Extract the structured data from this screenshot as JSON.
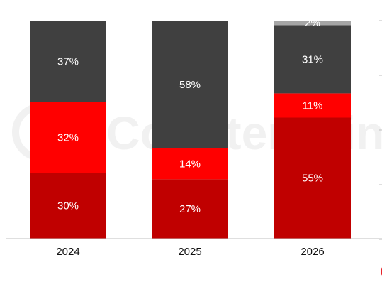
{
  "watermark": {
    "text": "Counterpoint"
  },
  "colors": {
    "dark_red": "#c00000",
    "red": "#ff0000",
    "dark_gray": "#404040",
    "light_gray": "#a6a6a6",
    "axis": "#bfbfbf",
    "accent_dot": "#e8242b"
  },
  "chart_data": {
    "type": "bar",
    "stacked": true,
    "percent_stacked": true,
    "categories": [
      "2024",
      "2025",
      "2026"
    ],
    "ylim": [
      0,
      100
    ],
    "legend": "none",
    "grid": false,
    "series": [
      {
        "color": "#c00000",
        "values": [
          30,
          27,
          55
        ],
        "labels": [
          "30%",
          "27%",
          "55%"
        ]
      },
      {
        "color": "#ff0000",
        "values": [
          32,
          14,
          11
        ],
        "labels": [
          "32%",
          "14%",
          "11%"
        ]
      },
      {
        "color": "#404040",
        "values": [
          37,
          58,
          31
        ],
        "labels": [
          "37%",
          "58%",
          "31%"
        ]
      },
      {
        "color": "#a6a6a6",
        "values": [
          0,
          0,
          2
        ],
        "labels": [
          "",
          "",
          "2%"
        ]
      }
    ]
  }
}
